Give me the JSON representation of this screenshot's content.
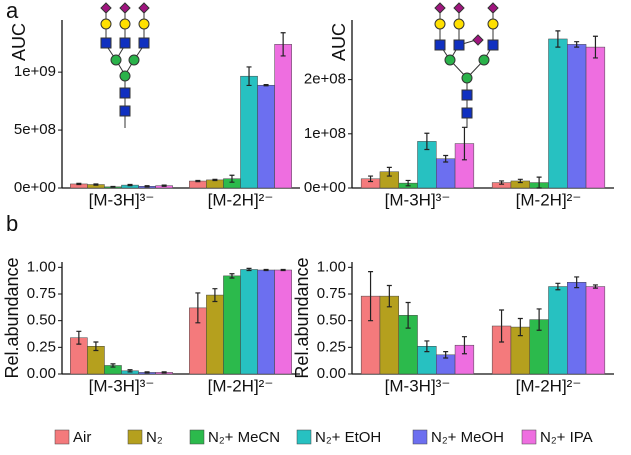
{
  "panel_labels": [
    "a",
    "b"
  ],
  "chart_data": [
    {
      "type": "bar",
      "ylabel": "AUC",
      "categories": [
        "[M-3H]³⁻",
        "[M-2H]²⁻"
      ],
      "ylim": [
        0,
        1450000000
      ],
      "yticks": [
        {
          "value": 0,
          "label": "0e+00"
        },
        {
          "value": 500000000,
          "label": "5e+08"
        },
        {
          "value": 1000000000,
          "label": "1e+09"
        }
      ],
      "series": [
        {
          "name": "Air",
          "color": "#f47a7c",
          "values": [
            35000000,
            60000000
          ],
          "errors": [
            5000000,
            5000000
          ]
        },
        {
          "name": "N₂",
          "color": "#b5a01e",
          "values": [
            30000000,
            70000000
          ],
          "errors": [
            5000000,
            5000000
          ]
        },
        {
          "name": "N₂+ MeCN",
          "color": "#2cba4c",
          "values": [
            10000000,
            80000000
          ],
          "errors": [
            3000000,
            30000000
          ]
        },
        {
          "name": "N₂+ EtOH",
          "color": "#27c1c1",
          "values": [
            25000000,
            965000000
          ],
          "errors": [
            5000000,
            80000000
          ]
        },
        {
          "name": "N₂+ MeOH",
          "color": "#6c6ff0",
          "values": [
            15000000,
            887000000
          ],
          "errors": [
            5000000,
            5000000
          ]
        },
        {
          "name": "N₂+ IPA",
          "color": "#ee6ee0",
          "values": [
            20000000,
            1240000000
          ],
          "errors": [
            5000000,
            100000000
          ]
        }
      ]
    },
    {
      "type": "bar",
      "ylabel": "AUC",
      "categories": [
        "[M-3H]³⁻",
        "[M-2H]²⁻"
      ],
      "ylim": [
        0,
        310000000
      ],
      "yticks": [
        {
          "value": 0,
          "label": "0e+00"
        },
        {
          "value": 100000000,
          "label": "1e+08"
        },
        {
          "value": 200000000,
          "label": "2e+08"
        }
      ],
      "series": [
        {
          "name": "Air",
          "color": "#f47a7c",
          "values": [
            17000000,
            10000000
          ],
          "errors": [
            5000000,
            3000000
          ]
        },
        {
          "name": "N₂",
          "color": "#b5a01e",
          "values": [
            30000000,
            13000000
          ],
          "errors": [
            8000000,
            3000000
          ]
        },
        {
          "name": "N₂+ MeCN",
          "color": "#2cba4c",
          "values": [
            9000000,
            10000000
          ],
          "errors": [
            5000000,
            10000000
          ]
        },
        {
          "name": "N₂+ EtOH",
          "color": "#27c1c1",
          "values": [
            86000000,
            275000000
          ],
          "errors": [
            15000000,
            15000000
          ]
        },
        {
          "name": "N₂+ MeOH",
          "color": "#6c6ff0",
          "values": [
            54000000,
            265000000
          ],
          "errors": [
            6000000,
            5000000
          ]
        },
        {
          "name": "N₂+ IPA",
          "color": "#ee6ee0",
          "values": [
            82000000,
            260000000
          ],
          "errors": [
            30000000,
            20000000
          ]
        }
      ]
    },
    {
      "type": "bar",
      "ylabel": "Rel.abundance",
      "categories": [
        "[M-3H]³⁻",
        "[M-2H]²⁻"
      ],
      "ylim": [
        0,
        1.05
      ],
      "yticks": [
        {
          "value": 0,
          "label": "0.00"
        },
        {
          "value": 0.25,
          "label": "0.25"
        },
        {
          "value": 0.5,
          "label": "0.50"
        },
        {
          "value": 0.75,
          "label": "0.75"
        },
        {
          "value": 1,
          "label": "1.00"
        }
      ],
      "series": [
        {
          "name": "Air",
          "color": "#f47a7c",
          "values": [
            0.34,
            0.62
          ],
          "errors": [
            0.06,
            0.14
          ]
        },
        {
          "name": "N₂",
          "color": "#b5a01e",
          "values": [
            0.26,
            0.74
          ],
          "errors": [
            0.04,
            0.06
          ]
        },
        {
          "name": "N₂+ MeCN",
          "color": "#2cba4c",
          "values": [
            0.08,
            0.92
          ],
          "errors": [
            0.015,
            0.02
          ]
        },
        {
          "name": "N₂+ EtOH",
          "color": "#27c1c1",
          "values": [
            0.03,
            0.98
          ],
          "errors": [
            0.01,
            0.01
          ]
        },
        {
          "name": "N₂+ MeOH",
          "color": "#6c6ff0",
          "values": [
            0.015,
            0.975
          ],
          "errors": [
            0.005,
            0.005
          ]
        },
        {
          "name": "N₂+ IPA",
          "color": "#ee6ee0",
          "values": [
            0.015,
            0.975
          ],
          "errors": [
            0.005,
            0.005
          ]
        }
      ]
    },
    {
      "type": "bar",
      "ylabel": "Rel.abundance",
      "categories": [
        "[M-3H]³⁻",
        "[M-2H]²⁻"
      ],
      "ylim": [
        0,
        1.05
      ],
      "yticks": [
        {
          "value": 0,
          "label": "0.00"
        },
        {
          "value": 0.25,
          "label": "0.25"
        },
        {
          "value": 0.5,
          "label": "0.50"
        },
        {
          "value": 0.75,
          "label": "0.75"
        },
        {
          "value": 1,
          "label": "1.00"
        }
      ],
      "series": [
        {
          "name": "Air",
          "color": "#f47a7c",
          "values": [
            0.73,
            0.45
          ],
          "errors": [
            0.23,
            0.15
          ]
        },
        {
          "name": "N₂",
          "color": "#b5a01e",
          "values": [
            0.73,
            0.44
          ],
          "errors": [
            0.1,
            0.08
          ]
        },
        {
          "name": "N₂+ MeCN",
          "color": "#2cba4c",
          "values": [
            0.55,
            0.51
          ],
          "errors": [
            0.12,
            0.1
          ]
        },
        {
          "name": "N₂+ EtOH",
          "color": "#27c1c1",
          "values": [
            0.26,
            0.82
          ],
          "errors": [
            0.05,
            0.03
          ]
        },
        {
          "name": "N₂+ MeOH",
          "color": "#6c6ff0",
          "values": [
            0.18,
            0.86
          ],
          "errors": [
            0.03,
            0.05
          ]
        },
        {
          "name": "N₂+ IPA",
          "color": "#ee6ee0",
          "values": [
            0.27,
            0.82
          ],
          "errors": [
            0.08,
            0.015
          ]
        }
      ]
    }
  ]
}
